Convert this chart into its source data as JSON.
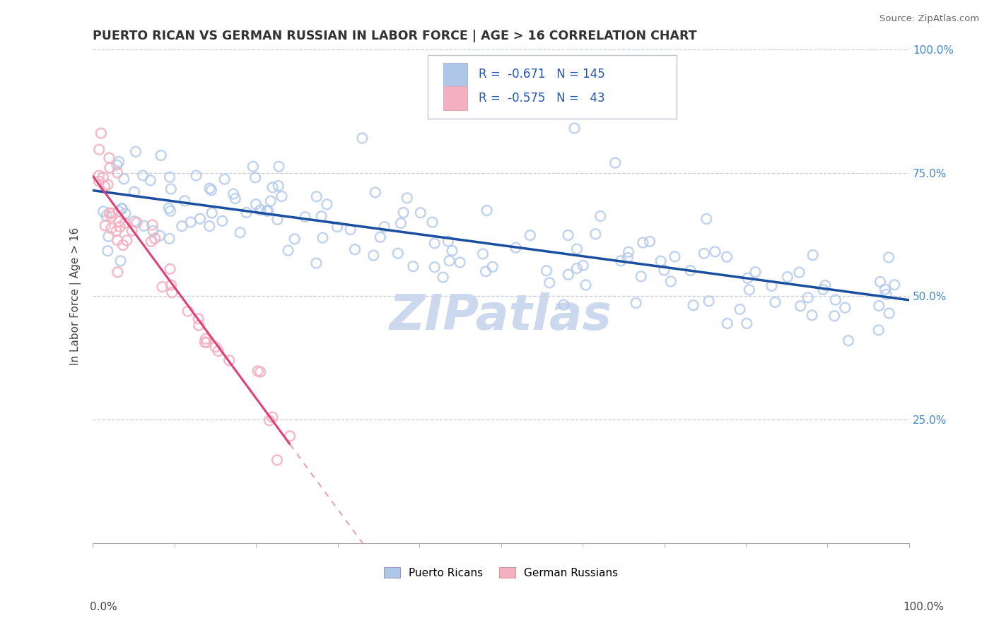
{
  "title": "PUERTO RICAN VS GERMAN RUSSIAN IN LABOR FORCE | AGE > 16 CORRELATION CHART",
  "source": "Source: ZipAtlas.com",
  "ylabel": "In Labor Force | Age > 16",
  "R1": -0.671,
  "N1": 145,
  "R2": -0.575,
  "N2": 43,
  "blue_fill": "#aec6e8",
  "blue_edge": "#aec6e8",
  "pink_fill": "#f4b0c0",
  "pink_edge": "#f4b0c0",
  "blue_line": "#1a4fa0",
  "pink_line": "#e0407a",
  "pink_line_dash": "#e8a0b8",
  "grid_color": "#c8cce0",
  "right_tick_color": "#4488cc",
  "title_color": "#333333",
  "source_color": "#666666",
  "watermark_color": "#ccd8ee",
  "background": "#ffffff",
  "legend_label1": "Puerto Ricans",
  "legend_label2": "German Russians",
  "xlim": [
    0,
    1
  ],
  "ylim": [
    0,
    1
  ],
  "blue_intercept": 0.705,
  "blue_slope": -0.22,
  "pink_intercept": 0.735,
  "pink_slope": -2.2
}
